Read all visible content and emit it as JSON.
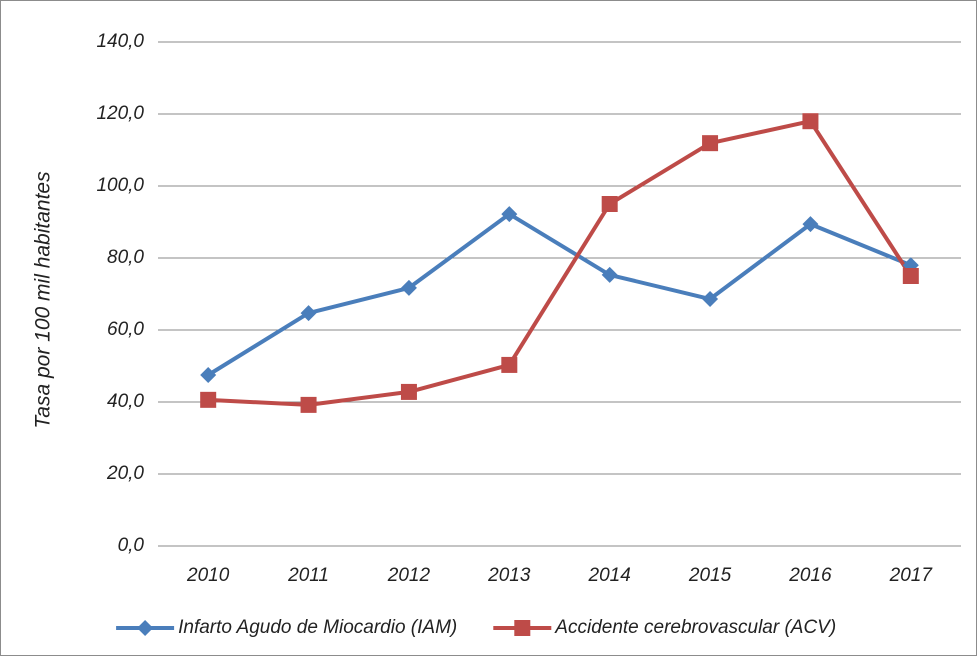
{
  "chart_data": {
    "type": "line",
    "y_label": "Tasa por 100 mil habitantes",
    "categories": [
      "2010",
      "2011",
      "2012",
      "2013",
      "2014",
      "2015",
      "2016",
      "2017"
    ],
    "series": [
      {
        "name": "Infarto Agudo de Miocardio (IAM)",
        "color": "#4a7ebb",
        "marker": "diamond",
        "values": [
          47.5,
          64.7,
          71.7,
          92.2,
          75.3,
          68.6,
          89.4,
          78.0
        ]
      },
      {
        "name": "Accidente cerebrovascular (ACV)",
        "color": "#be4b48",
        "marker": "square",
        "values": [
          40.6,
          39.2,
          42.8,
          50.3,
          95.0,
          111.9,
          118.0,
          75.0
        ]
      }
    ],
    "ylim": [
      0,
      140
    ],
    "yticks": [
      {
        "value": 0,
        "label": "0,0"
      },
      {
        "value": 20,
        "label": "20,0"
      },
      {
        "value": 40,
        "label": "40,0"
      },
      {
        "value": 60,
        "label": "60,0"
      },
      {
        "value": 80,
        "label": "80,0"
      },
      {
        "value": 100,
        "label": "100,0"
      },
      {
        "value": 120,
        "label": "120,0"
      },
      {
        "value": 140,
        "label": "140,0"
      }
    ],
    "grid": true,
    "legend": "bottom"
  }
}
